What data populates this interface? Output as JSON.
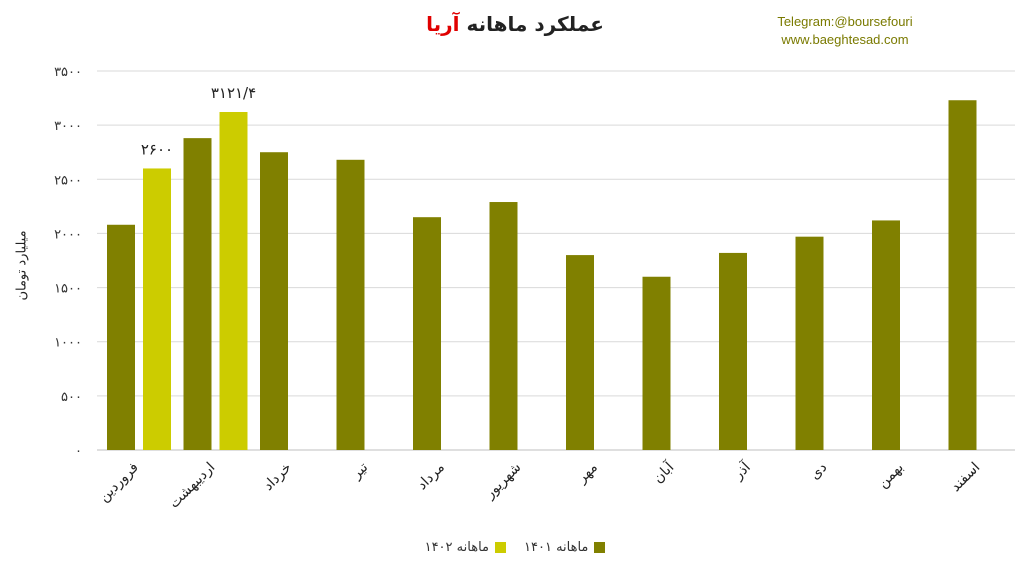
{
  "title": {
    "main": "عملکرد ماهانه",
    "accent": "آریا"
  },
  "source": {
    "telegram": "Telegram:@boursefouri",
    "website": "www.baeghtesad.com"
  },
  "colors": {
    "s1401": "#808000",
    "s1402": "#cccc00",
    "accent": "#e00000",
    "grid": "#d9d9d9"
  },
  "chart_data": {
    "type": "bar",
    "title": "عملکرد ماهانه آریا",
    "ylabel": "میلیارد تومان",
    "xlabel": "",
    "ylim": [
      0,
      3500
    ],
    "yticks": [
      0,
      500,
      1000,
      1500,
      2000,
      2500,
      3000,
      3500
    ],
    "ytick_labels": [
      "۰",
      "۵۰۰",
      "۱۰۰۰",
      "۱۵۰۰",
      "۲۰۰۰",
      "۲۵۰۰",
      "۳۰۰۰",
      "۳۵۰۰"
    ],
    "grid": true,
    "legend_position": "bottom",
    "categories": [
      "فروردین",
      "اردیبهشت",
      "خرداد",
      "تیر",
      "مرداد",
      "شهریور",
      "مهر",
      "آبان",
      "آذر",
      "دی",
      "بهمن",
      "اسفند"
    ],
    "series": [
      {
        "name": "ماهانه ۱۴۰۱",
        "color": "#808000",
        "values": [
          2080,
          2880,
          2750,
          2680,
          2150,
          2290,
          1800,
          1600,
          1820,
          1970,
          2120,
          3230
        ]
      },
      {
        "name": "ماهانه ۱۴۰۲",
        "color": "#cccc00",
        "values": [
          2600,
          3121.4,
          null,
          null,
          null,
          null,
          null,
          null,
          null,
          null,
          null,
          null
        ],
        "labels": [
          "۲۶۰۰",
          "۳۱۲۱/۴",
          null,
          null,
          null,
          null,
          null,
          null,
          null,
          null,
          null,
          null
        ]
      }
    ]
  }
}
